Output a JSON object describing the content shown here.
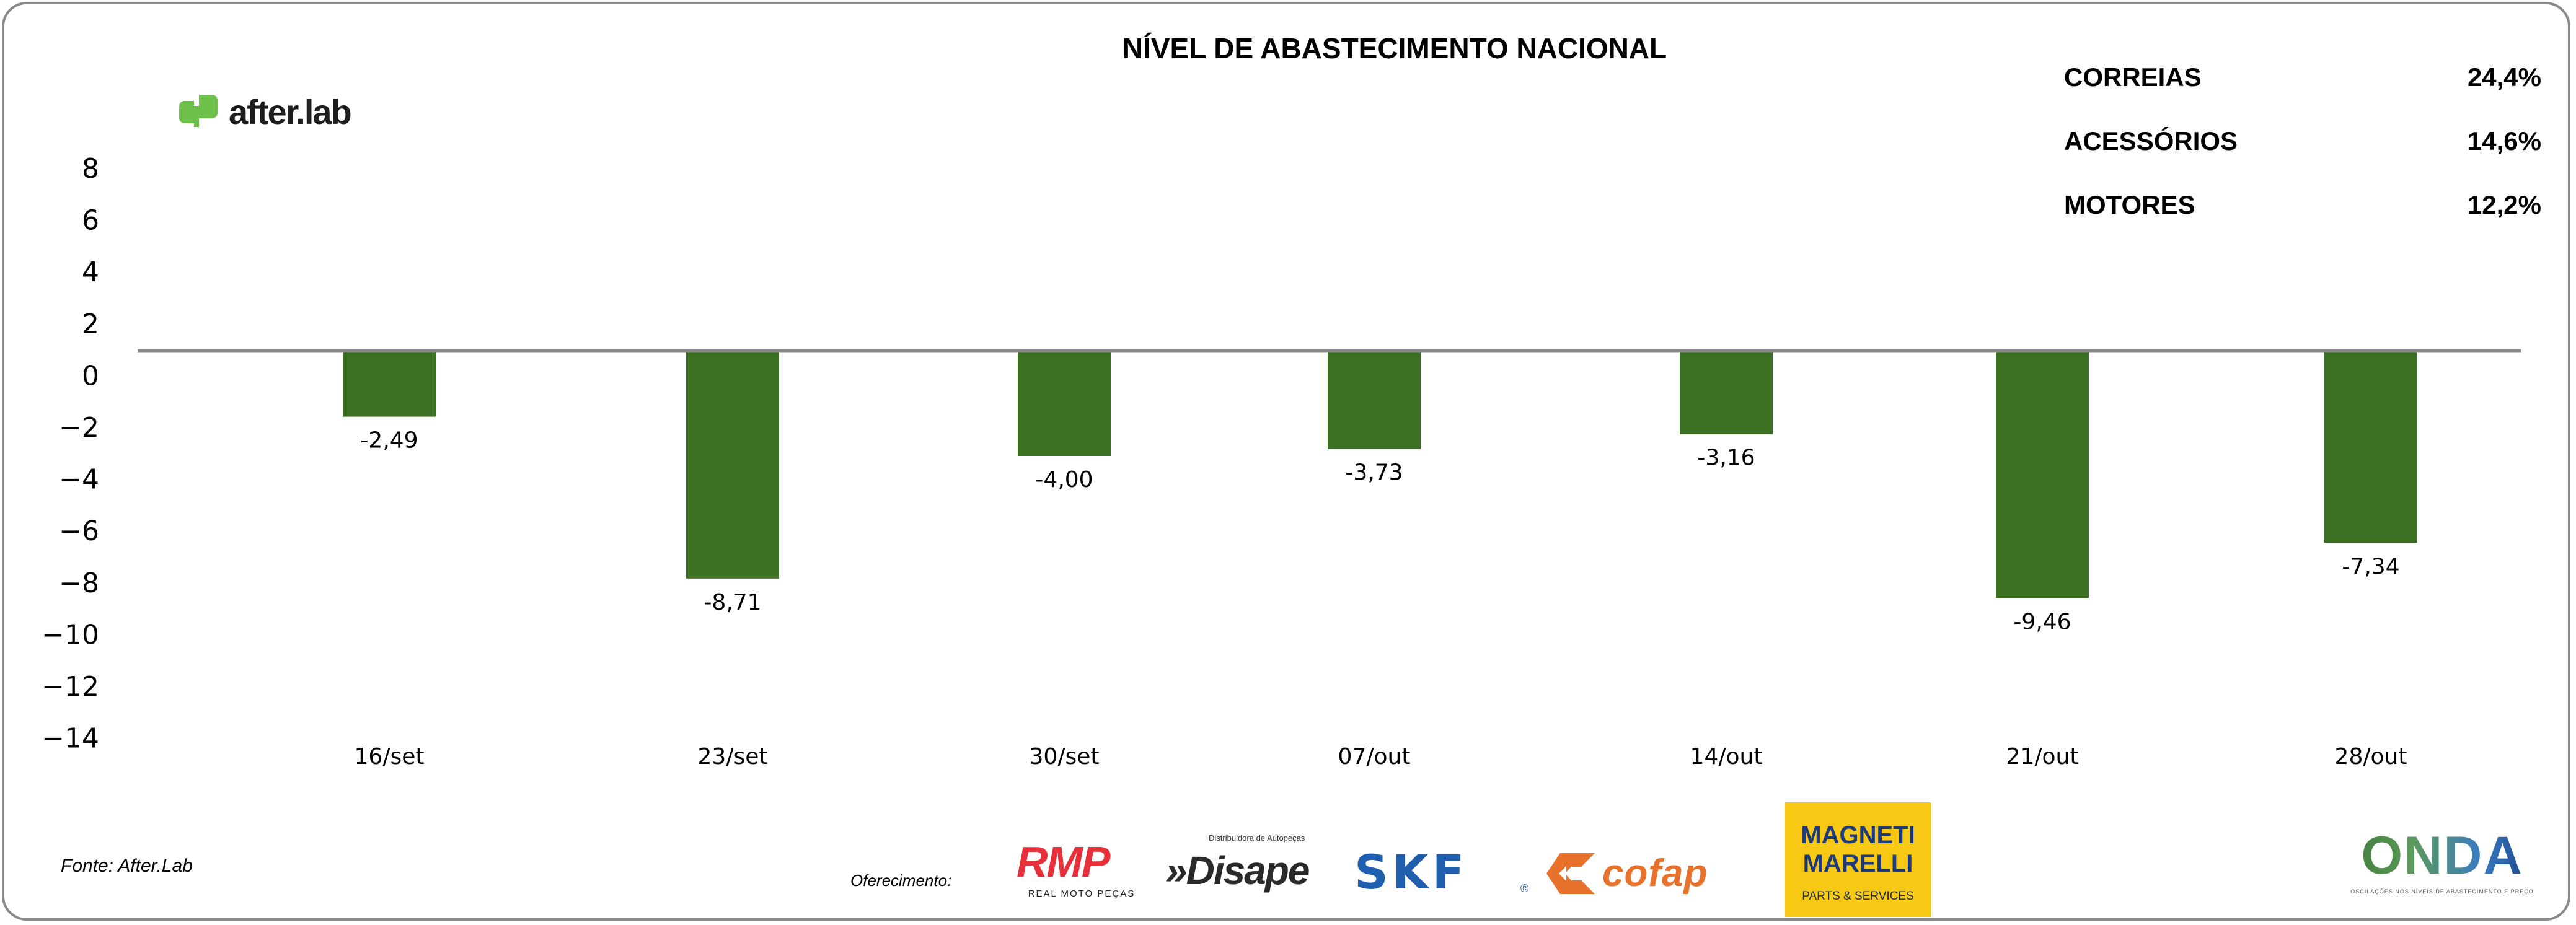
{
  "header": {
    "title": "NÍVEL DE ABASTECIMENTO NACIONAL",
    "brand": "after.lab"
  },
  "legend": [
    {
      "label": "CORREIAS",
      "value": "24,4%"
    },
    {
      "label": "ACESSÓRIOS",
      "value": "14,6%"
    },
    {
      "label": "MOTORES",
      "value": "12,2%"
    }
  ],
  "chart_data": {
    "type": "bar",
    "title": "NÍVEL DE ABASTECIMENTO NACIONAL",
    "xlabel": "",
    "ylabel": "",
    "categories": [
      "16/set",
      "23/set",
      "30/set",
      "07/out",
      "14/out",
      "21/out",
      "28/out"
    ],
    "values": [
      -2.49,
      -8.71,
      -4.0,
      -3.73,
      -3.16,
      -9.46,
      -7.34
    ],
    "value_labels": [
      "-2,49",
      "-8,71",
      "-4,00",
      "-3,73",
      "-3,16",
      "-9,46",
      "-7,34"
    ],
    "yticks": [
      8,
      6,
      4,
      2,
      0,
      -2,
      -4,
      -6,
      -8,
      -10,
      -12,
      -14
    ],
    "ytick_labels": [
      "8",
      "6",
      "4",
      "2",
      "0",
      "-2",
      "-4",
      "-6",
      "-8",
      "-10",
      "-12",
      "-14"
    ],
    "ylim": [
      -14,
      8
    ],
    "grid": false,
    "bar_color": "#3b7023",
    "baseline_color": "#8a8a8a"
  },
  "footer": {
    "source": "Fonte: After.Lab",
    "offer_label": "Oferecimento:",
    "sponsors": {
      "rmp": {
        "name": "RMP",
        "tagline": "REAL MOTO PEÇAS"
      },
      "disape": {
        "name": "»Disape",
        "tagline": "Distribuidora de Autopeças"
      },
      "skf": {
        "name": "SKF",
        "mark": "®"
      },
      "cofap": {
        "name": "cofap"
      },
      "magneti": {
        "name": "MAGNETI MARELLI",
        "tagline": "PARTS & SERVICES"
      },
      "onda": {
        "name": "ONDA",
        "tagline": "OSCILAÇÕES NOS NÍVEIS DE ABASTECIMENTO E PREÇO"
      }
    }
  }
}
